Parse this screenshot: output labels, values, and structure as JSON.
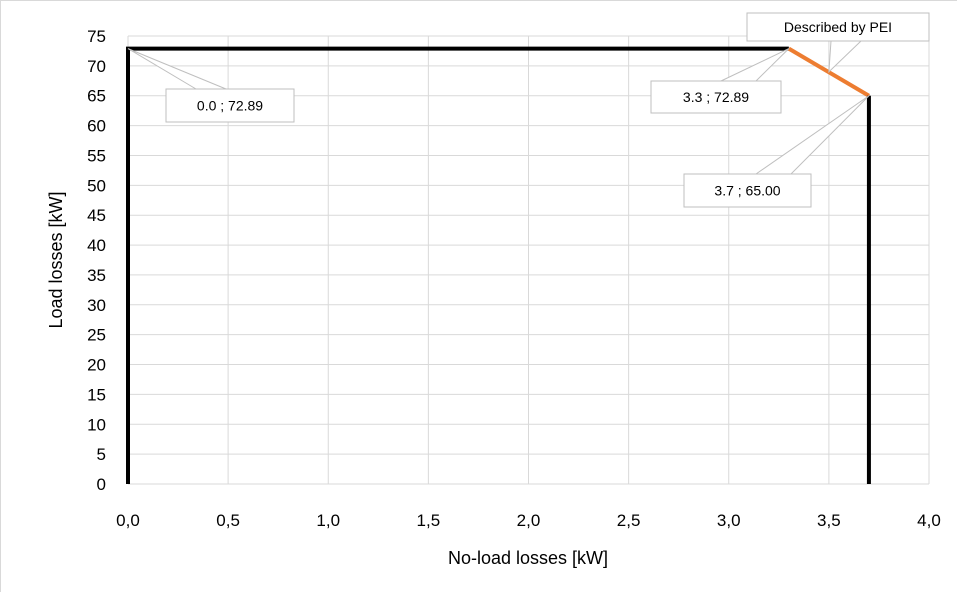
{
  "chart_data": {
    "type": "line",
    "title": "",
    "xlabel": "No-load losses [kW]",
    "ylabel": "Load losses [kW]",
    "xlim": [
      0,
      4
    ],
    "ylim": [
      0,
      75
    ],
    "x_ticks": [
      "0,0",
      "0,5",
      "1,0",
      "1,5",
      "2,0",
      "2,5",
      "3,0",
      "3,5",
      "4,0"
    ],
    "y_ticks": [
      "0",
      "5",
      "10",
      "15",
      "20",
      "25",
      "30",
      "35",
      "40",
      "45",
      "50",
      "55",
      "60",
      "65",
      "70",
      "75"
    ],
    "grid": true,
    "series": [
      {
        "color": "#000000",
        "points": [
          [
            0.0,
            0
          ],
          [
            0.0,
            72.89
          ],
          [
            3.3,
            72.89
          ]
        ]
      },
      {
        "color": "#ed7d31",
        "points": [
          [
            3.3,
            72.89
          ],
          [
            3.7,
            65.0
          ]
        ]
      },
      {
        "color": "#000000",
        "points": [
          [
            3.7,
            65.0
          ],
          [
            3.7,
            0
          ]
        ]
      }
    ],
    "annotations": [
      {
        "text": "0.0 ; 72.89",
        "x": 0.0,
        "y": 72.89
      },
      {
        "text": "3.3 ; 72.89",
        "x": 3.3,
        "y": 72.89
      },
      {
        "text": "3.7 ; 65.00",
        "x": 3.7,
        "y": 65.0
      },
      {
        "text": "Described by PEI",
        "x": 3.5,
        "y": 69.0
      }
    ]
  }
}
